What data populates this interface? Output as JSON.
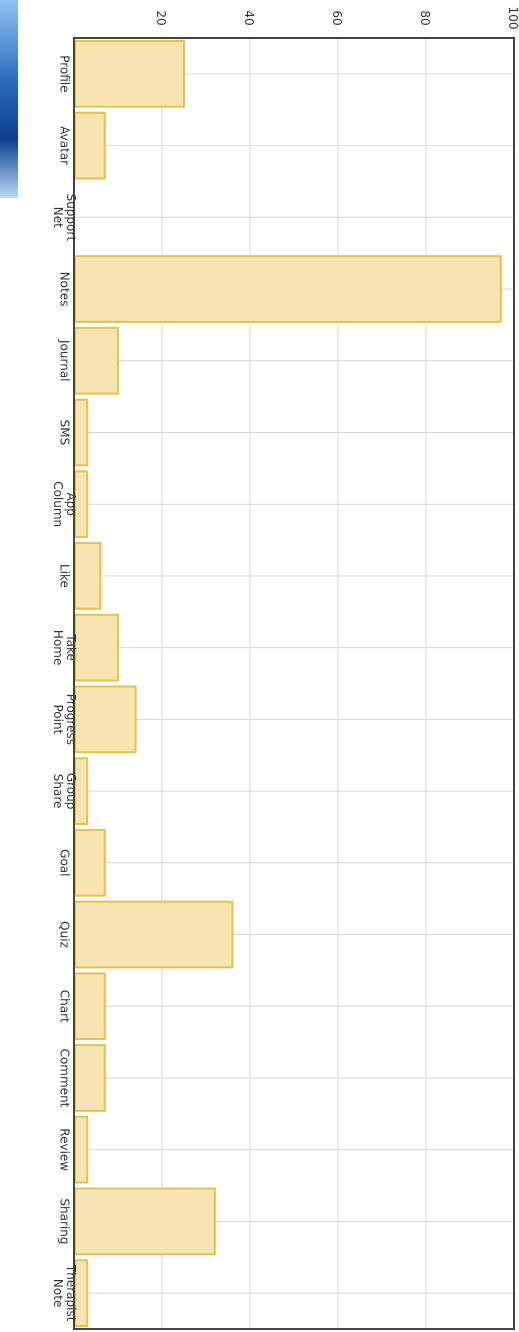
{
  "chart_data": {
    "type": "bar",
    "orientation": "rotated-90-clockwise",
    "categories": [
      [
        "Profile"
      ],
      [
        "Avatar"
      ],
      [
        "Support",
        "Net"
      ],
      [
        "Notes"
      ],
      [
        "Journal"
      ],
      [
        "SMS"
      ],
      [
        "App",
        "Column"
      ],
      [
        "Like"
      ],
      [
        "Take",
        "Home"
      ],
      [
        "Progress",
        "Point"
      ],
      [
        "Group",
        "Share"
      ],
      [
        "Goal"
      ],
      [
        "Quiz"
      ],
      [
        "Chart"
      ],
      [
        "Comment"
      ],
      [
        "Review"
      ],
      [
        "Sharing"
      ],
      [
        "Therapist",
        "Note"
      ]
    ],
    "values": [
      25,
      7,
      0,
      97,
      10,
      3,
      3,
      6,
      10,
      14,
      3,
      7,
      36,
      7,
      7,
      3,
      32,
      3
    ],
    "yticks": [
      20,
      40,
      60,
      80,
      100
    ],
    "ylim": [
      0,
      100
    ],
    "grid": true,
    "colors": {
      "bar_fill": "#f7e4b2",
      "bar_stroke": "#e8c04a",
      "grid": "#d6d6d6",
      "axis": "#444444"
    }
  }
}
